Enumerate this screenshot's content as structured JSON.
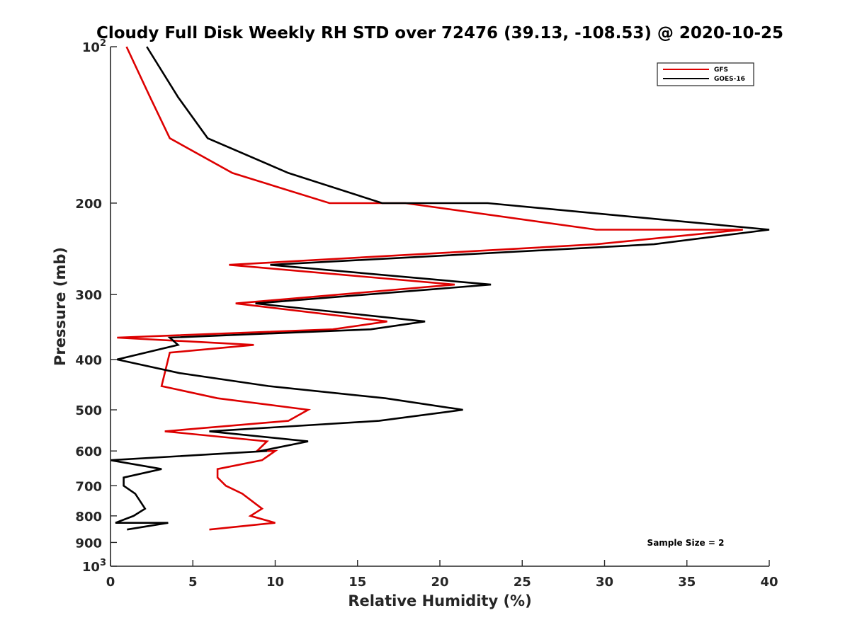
{
  "chart_data": {
    "type": "line",
    "title": "Cloudy Full Disk Weekly RH STD over 72476 (39.13, -108.53) @ 2020-10-25",
    "xlabel": "Relative Humidity (%)",
    "ylabel": "Pressure (mb)",
    "xlim": [
      0,
      40
    ],
    "ylim": [
      100,
      1000
    ],
    "y_scale": "log",
    "y_reversed": true,
    "x_ticks": [
      "0",
      "5",
      "10",
      "15",
      "20",
      "25",
      "30",
      "35",
      "40"
    ],
    "y_ticks": [
      {
        "value": 100,
        "label": "10",
        "sup": "2"
      },
      {
        "value": 200,
        "label": "200",
        "sup": ""
      },
      {
        "value": 300,
        "label": "300",
        "sup": ""
      },
      {
        "value": 400,
        "label": "400",
        "sup": ""
      },
      {
        "value": 500,
        "label": "500",
        "sup": ""
      },
      {
        "value": 600,
        "label": "600",
        "sup": ""
      },
      {
        "value": 700,
        "label": "700",
        "sup": ""
      },
      {
        "value": 800,
        "label": "800",
        "sup": ""
      },
      {
        "value": 900,
        "label": "900",
        "sup": ""
      },
      {
        "value": 1000,
        "label": "10",
        "sup": "3"
      }
    ],
    "grid": false,
    "legend_position": "top-right",
    "annotation": "Sample Size = 2",
    "series": [
      {
        "name": "GFS",
        "color": "#dd0000",
        "points": [
          [
            0.97,
            100
          ],
          [
            2.4,
            125
          ],
          [
            3.6,
            150
          ],
          [
            7.4,
            175
          ],
          [
            13.3,
            200
          ],
          [
            17.9,
            200
          ],
          [
            29.5,
            225
          ],
          [
            38.4,
            225
          ],
          [
            29.5,
            240
          ],
          [
            7.2,
            263
          ],
          [
            20.9,
            287
          ],
          [
            7.6,
            312
          ],
          [
            16.8,
            338
          ],
          [
            13.5,
            350
          ],
          [
            0.4,
            363
          ],
          [
            8.7,
            375
          ],
          [
            3.6,
            388
          ],
          [
            3.1,
            450
          ],
          [
            6.5,
            475
          ],
          [
            12.0,
            500
          ],
          [
            10.8,
            525
          ],
          [
            3.3,
            550
          ],
          [
            9.5,
            575
          ],
          [
            8.9,
            600
          ],
          [
            10.0,
            600
          ],
          [
            9.2,
            625
          ],
          [
            6.5,
            650
          ],
          [
            6.5,
            675
          ],
          [
            7.0,
            700
          ],
          [
            8.0,
            725
          ],
          [
            9.2,
            775
          ],
          [
            8.5,
            800
          ],
          [
            10.0,
            825
          ],
          [
            6.0,
            850
          ]
        ]
      },
      {
        "name": "GOES-16",
        "color": "#000000",
        "points": [
          [
            2.2,
            100
          ],
          [
            4.1,
            125
          ],
          [
            5.9,
            150
          ],
          [
            10.8,
            175
          ],
          [
            16.5,
            200
          ],
          [
            22.9,
            200
          ],
          [
            40.0,
            225
          ],
          [
            40.0,
            225
          ],
          [
            33.0,
            240
          ],
          [
            9.7,
            263
          ],
          [
            23.1,
            287
          ],
          [
            8.8,
            312
          ],
          [
            19.1,
            338
          ],
          [
            15.8,
            350
          ],
          [
            3.6,
            363
          ],
          [
            4.1,
            375
          ],
          [
            0.4,
            400
          ],
          [
            4.2,
            425
          ],
          [
            9.6,
            450
          ],
          [
            16.7,
            475
          ],
          [
            21.4,
            500
          ],
          [
            16.3,
            525
          ],
          [
            6.0,
            550
          ],
          [
            12.0,
            575
          ],
          [
            9.1,
            600
          ],
          [
            9.5,
            600
          ],
          [
            0.0,
            625
          ],
          [
            3.1,
            650
          ],
          [
            0.8,
            675
          ],
          [
            0.8,
            700
          ],
          [
            1.5,
            725
          ],
          [
            2.1,
            775
          ],
          [
            1.4,
            800
          ],
          [
            0.3,
            825
          ],
          [
            3.5,
            825
          ],
          [
            1.0,
            850
          ]
        ]
      }
    ]
  }
}
